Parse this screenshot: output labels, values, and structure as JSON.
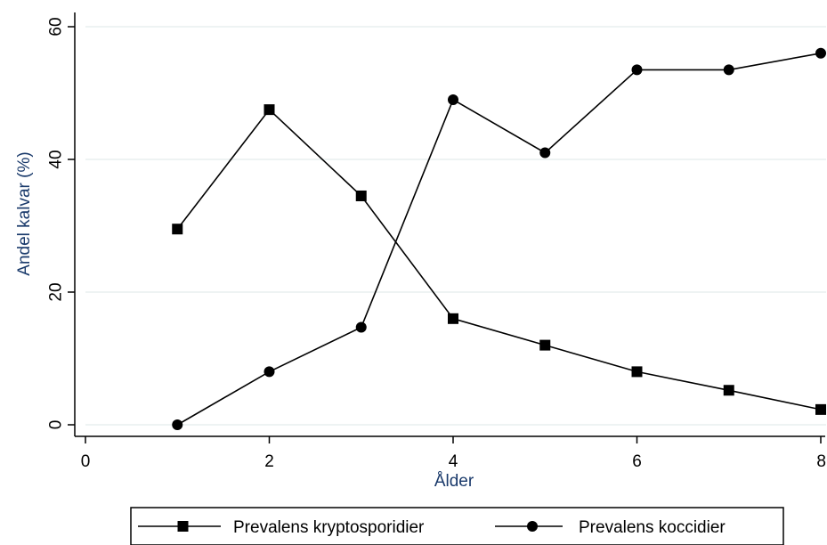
{
  "chart_data": {
    "type": "line",
    "xlabel": "Ålder",
    "ylabel": "Andel kalvar  (%)",
    "xlim": [
      0,
      8
    ],
    "ylim": [
      0,
      60
    ],
    "xticks": [
      "0",
      "2",
      "4",
      "6",
      "8"
    ],
    "yticks": [
      "0",
      "20",
      "40",
      "60"
    ],
    "grid": true,
    "legend_position": "bottom",
    "series": [
      {
        "name": "Prevalens kryptosporidier",
        "marker": "square",
        "x": [
          1,
          2,
          3,
          4,
          5,
          6,
          7,
          8
        ],
        "y": [
          29.5,
          47.5,
          34.5,
          16.0,
          12.0,
          8.0,
          5.2,
          2.3
        ]
      },
      {
        "name": "Prevalens koccidier",
        "marker": "circle",
        "x": [
          1,
          2,
          3,
          4,
          5,
          6,
          7,
          8
        ],
        "y": [
          0.0,
          8.0,
          14.7,
          49.0,
          41.0,
          53.5,
          53.5,
          56.0
        ]
      }
    ],
    "colors": {
      "line": "#000000",
      "grid": "#e8efef",
      "axis_title": "#1a3a6b",
      "frame": "#000000"
    }
  }
}
